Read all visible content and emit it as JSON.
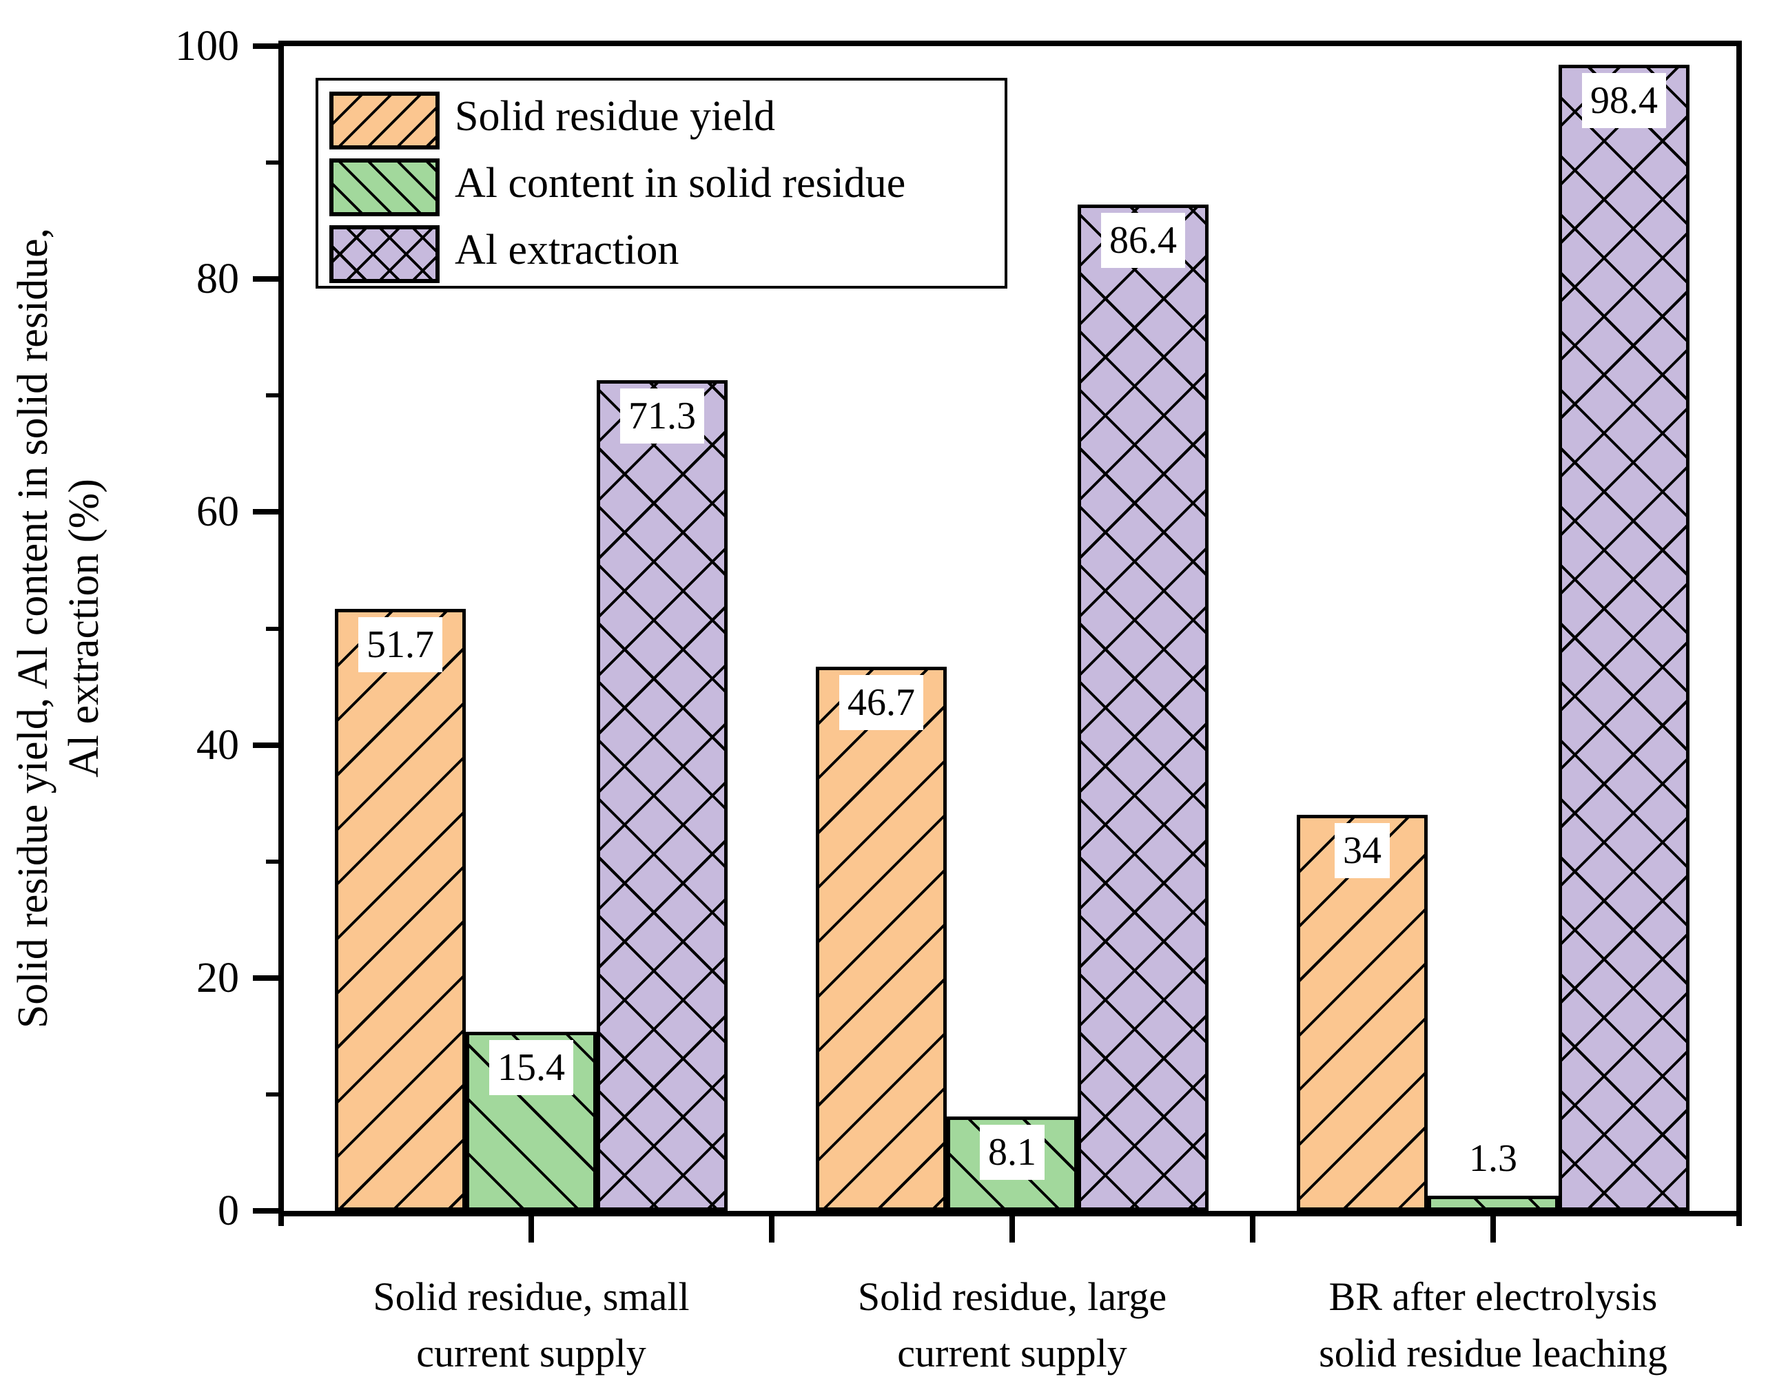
{
  "chart_data": {
    "type": "bar",
    "title": "",
    "categories": [
      [
        "Solid residue, small",
        "current supply"
      ],
      [
        "Solid residue, large",
        "current supply"
      ],
      [
        "BR after electrolysis",
        "solid residue leaching"
      ]
    ],
    "series": [
      {
        "name": "Solid residue yield",
        "color": "#fbc690",
        "hatch": "/",
        "values": [
          51.7,
          46.7,
          34
        ],
        "labels": [
          "51.7",
          "46.7",
          "34"
        ]
      },
      {
        "name": "Al content in solid residue",
        "color": "#a2d89c",
        "hatch": "\\",
        "values": [
          15.4,
          8.1,
          1.3
        ],
        "labels": [
          "15.4",
          "8.1",
          "1.3"
        ]
      },
      {
        "name": "Al extraction",
        "color": "#c7badd",
        "hatch": "x",
        "values": [
          71.3,
          86.4,
          98.4
        ],
        "labels": [
          "71.3",
          "86.4",
          "98.4"
        ]
      }
    ],
    "ylabel_line1": "Solid residue yield, Al content in solid residue,",
    "ylabel_line2": "Al extraction (%)",
    "xlabel": "",
    "ylim": [
      0,
      100
    ],
    "yticks": [
      0,
      20,
      40,
      60,
      80,
      100
    ],
    "yticks_minor": [
      10,
      30,
      50,
      70,
      90
    ],
    "legend_position": "upper left",
    "grid": false,
    "axis_color": "#000000",
    "value_label_background": "#ffffff",
    "value_label_color": "#000000"
  }
}
